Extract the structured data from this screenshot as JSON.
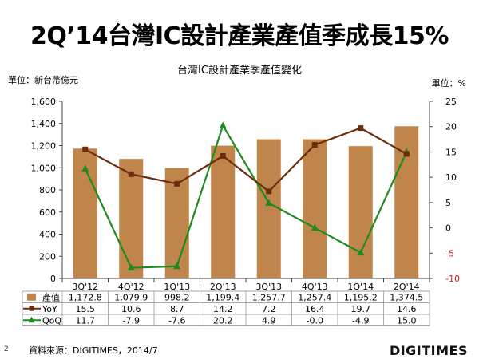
{
  "page": {
    "title": "2Q’14台灣IC設計產業產值季成長15%",
    "unit_left": "單位：新台幣億元",
    "unit_right": "單位：%",
    "source": "資料來源：DIGITIMES，2014/7",
    "page_number": "2",
    "logo": "DIGITIMES"
  },
  "chart_data": {
    "type": "bar",
    "title": "台灣IC設計產業季產值變化",
    "categories": [
      "3Q'12",
      "4Q'12",
      "1Q'13",
      "2Q'13",
      "3Q'13",
      "4Q'13",
      "1Q'14",
      "2Q'14"
    ],
    "series": [
      {
        "name": "產值",
        "type": "bar",
        "axis": "left",
        "values": [
          1172.8,
          1079.9,
          998.2,
          1199.4,
          1257.7,
          1257.4,
          1195.2,
          1374.5
        ],
        "labels": [
          "1,172.8",
          "1,079.9",
          "998.2",
          "1,199.4",
          "1,257.7",
          "1,257.4",
          "1,195.2",
          "1,374.5"
        ],
        "color": "#C0854A"
      },
      {
        "name": "YoY",
        "type": "line",
        "axis": "right",
        "marker": "square",
        "values": [
          15.5,
          10.6,
          8.7,
          14.2,
          7.2,
          16.4,
          19.7,
          14.6
        ],
        "labels": [
          "15.5",
          "10.6",
          "8.7",
          "14.2",
          "7.2",
          "16.4",
          "19.7",
          "14.6"
        ],
        "color": "#6B2E0C"
      },
      {
        "name": "QoQ",
        "type": "line",
        "axis": "right",
        "marker": "triangle",
        "values": [
          11.7,
          -7.9,
          -7.6,
          20.2,
          4.9,
          0.0,
          -4.9,
          15.0
        ],
        "labels": [
          "11.7",
          "-7.9",
          "-7.6",
          "20.2",
          "4.9",
          "-0.0",
          "-4.9",
          "15.0"
        ],
        "color": "#1F8A1F"
      }
    ],
    "left_axis": {
      "range": [
        0,
        1600
      ],
      "ticks": [
        0,
        200,
        400,
        600,
        800,
        1000,
        1200,
        1400,
        1600
      ],
      "tick_labels": [
        "0",
        "200",
        "400",
        "600",
        "800",
        "1,000",
        "1,200",
        "1,400",
        "1,600"
      ]
    },
    "right_axis": {
      "range": [
        -10,
        25
      ],
      "ticks": [
        -10,
        -5,
        0,
        5,
        10,
        15,
        20,
        25
      ],
      "tick_labels": [
        "-10",
        "-5",
        "0",
        "5",
        "10",
        "15",
        "20",
        "25"
      ],
      "negative_color": "#D42020"
    },
    "grid": false,
    "legend": "data-table-below"
  }
}
